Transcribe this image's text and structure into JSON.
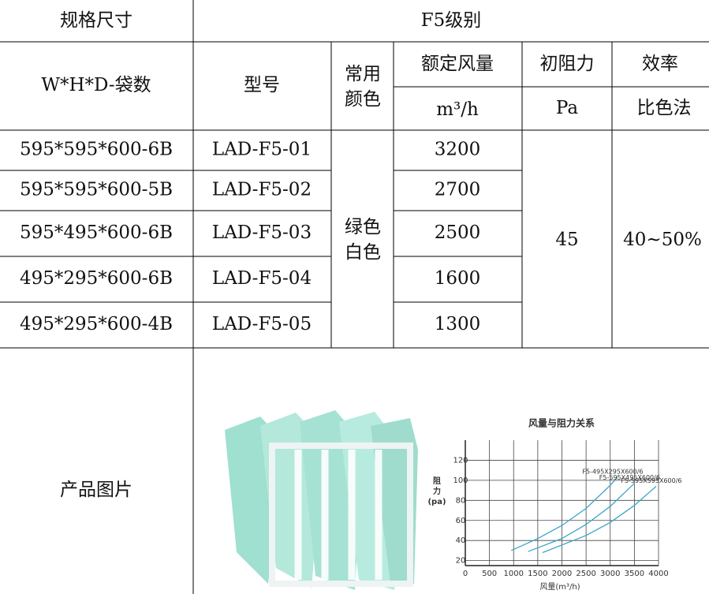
{
  "table": {
    "header": [
      "规格尺寸",
      "F5级别"
    ],
    "columns": {
      "size": "W*H*D-袋数",
      "model": "型号",
      "color": [
        "常用",
        "颜色"
      ],
      "airflow": [
        "额定风量",
        "m³/h"
      ],
      "resistance": [
        "初阻力",
        "Pa"
      ],
      "efficiency": [
        "效率",
        "比色法"
      ]
    },
    "rows": [
      [
        "595*595*600-6B",
        "LAD-F5-01",
        "3200"
      ],
      [
        "595*595*600-5B",
        "LAD-F5-02",
        "2700"
      ],
      [
        "595*495*600-6B",
        "LAD-F5-03",
        "2500"
      ],
      [
        "495*295*600-6B",
        "LAD-F5-04",
        "1600"
      ],
      [
        "495*295*600-4B",
        "LAD-F5-05",
        "1300"
      ]
    ],
    "color": [
      "绿色",
      "白色"
    ],
    "resistance": "45",
    "efficiency": "40~50%",
    "image_label": "产品图片"
  },
  "chart_data": {
    "type": "line",
    "title": "风量与阻力关系",
    "y_label": [
      "阻",
      "力",
      "(pa)"
    ],
    "x_label": "风量(m³/h)",
    "xlim": [
      0,
      4000
    ],
    "ylim": [
      15,
      140
    ],
    "xticks": [
      0,
      500,
      1000,
      1500,
      2000,
      2500,
      3000,
      3500,
      4000
    ],
    "yticks": [
      20,
      40,
      60,
      80,
      100,
      120
    ],
    "grid": true,
    "series": [
      {
        "name": "F5-495X295X600/6",
        "color": "#3aa6c9",
        "x": [
          950,
          1500,
          2000,
          2500,
          3000,
          3150
        ],
        "values": [
          30,
          42,
          55,
          72,
          95,
          103
        ]
      },
      {
        "name": "F5-595X495X600/6",
        "color": "#3aa6c9",
        "x": [
          1300,
          2000,
          2500,
          3000,
          3500
        ],
        "values": [
          29,
          42,
          56,
          74,
          97
        ]
      },
      {
        "name": "F5-595X595X600/6",
        "color": "#3aa6c9",
        "x": [
          1600,
          2500,
          3000,
          3500,
          3950
        ],
        "values": [
          28,
          45,
          58,
          75,
          94
        ]
      }
    ]
  }
}
